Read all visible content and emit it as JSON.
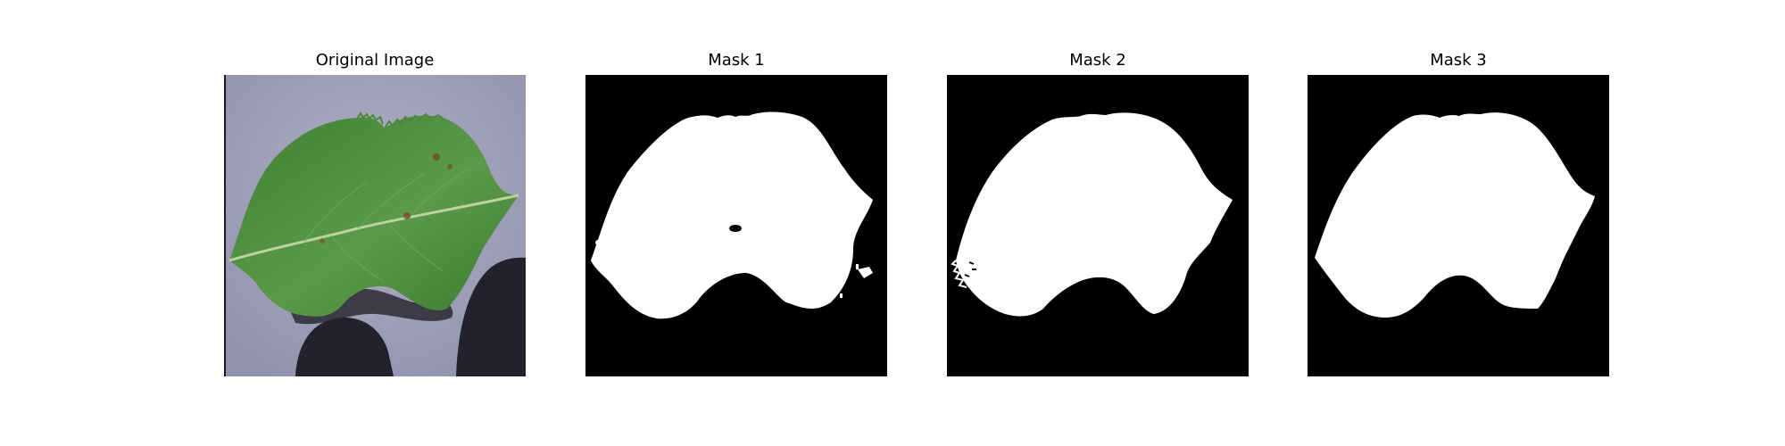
{
  "figure": {
    "panels": [
      {
        "title": "Original Image"
      },
      {
        "title": "Mask 1"
      },
      {
        "title": "Mask 2"
      },
      {
        "title": "Mask 3"
      }
    ]
  },
  "colors": {
    "background_surface": "#8f8faa",
    "leaf_green": "#4e8a3e",
    "leaf_dark": "#36702e",
    "vein": "#c9d8a6",
    "shadow": "#23232e",
    "mask_background": "#000000",
    "mask_foreground": "#ffffff"
  }
}
